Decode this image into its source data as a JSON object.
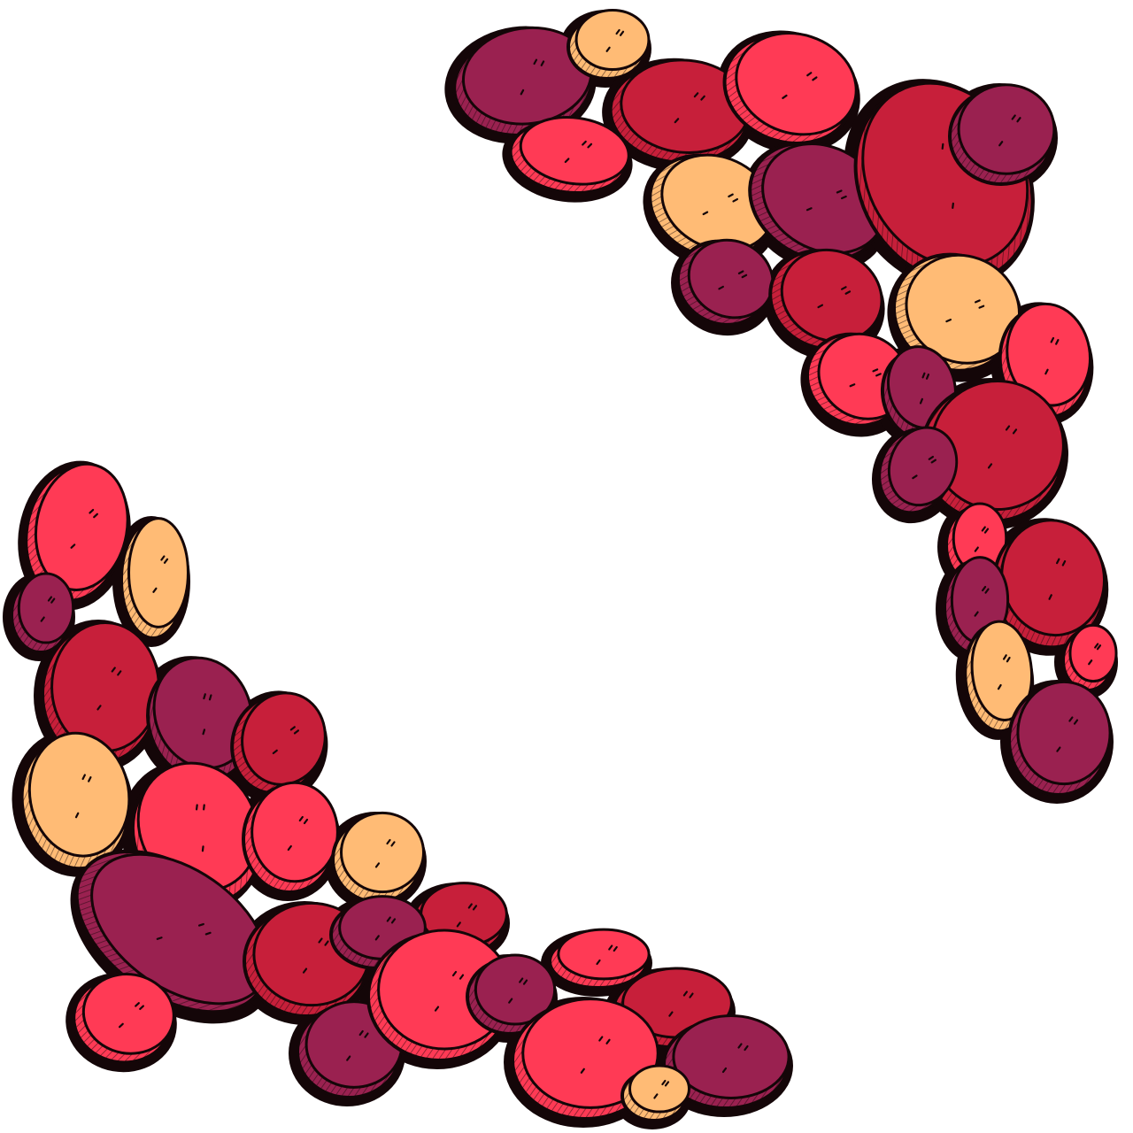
{
  "palette": {
    "outline": "#140608",
    "plum": "#9a2150",
    "crimson": "#c71f3a",
    "coral": "#ff3a55",
    "peach": "#ffbb75",
    "background": "#ffffff"
  },
  "illustration": {
    "subject": "stone-border-illustration",
    "clusters": [
      "upper-right-stone-arc",
      "lower-left-stone-arc"
    ]
  }
}
